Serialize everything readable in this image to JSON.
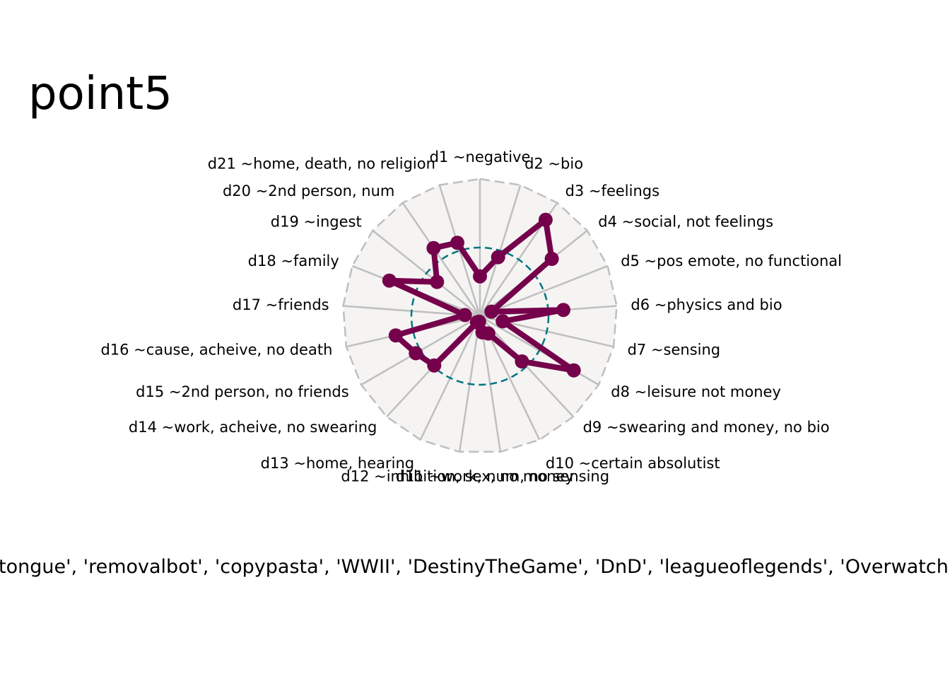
{
  "chart_data": {
    "type": "radar",
    "title": "point5",
    "caption": "tongue', 'removalbot', 'copypasta', 'WWII', 'DestinyTheGame', 'DnD', 'leagueoflegends', 'Overwatch'",
    "axes": [
      "d1 ~negative",
      "d2 ~bio",
      "d3 ~feelings",
      "d4 ~social, not feelings",
      "d5 ~pos emote, no functional",
      "d6 ~physics and bio",
      "d7 ~sensing",
      "d8 ~leisure not money",
      "d9 ~swearing and money, no bio",
      "d10 ~certain absolutist",
      "d11 ~work, num, no sensing",
      "d12 ~inhibition, sex, no money",
      "d13 ~home, hearing",
      "d14 ~work, acheive, no swearing",
      "d15 ~2nd person, no friends",
      "d16 ~cause, acheive, no death",
      "d17 ~friends",
      "d18 ~family",
      "d19 ~ingest",
      "d20 ~2nd person, num",
      "d21 ~home, death, no religion"
    ],
    "values": [
      0.29,
      0.45,
      0.85,
      0.67,
      0.09,
      0.61,
      0.17,
      0.79,
      0.45,
      0.14,
      0.12,
      0.04,
      0.05,
      0.49,
      0.54,
      0.63,
      0.11,
      0.71,
      0.4,
      0.6,
      0.56
    ],
    "reference_ring": 0.5,
    "rlim": [
      0,
      1
    ],
    "series_color": "#75004b",
    "reference_color": "#007580",
    "background_color": "#f5f4f3",
    "grid_color": "#bfbfbf"
  }
}
